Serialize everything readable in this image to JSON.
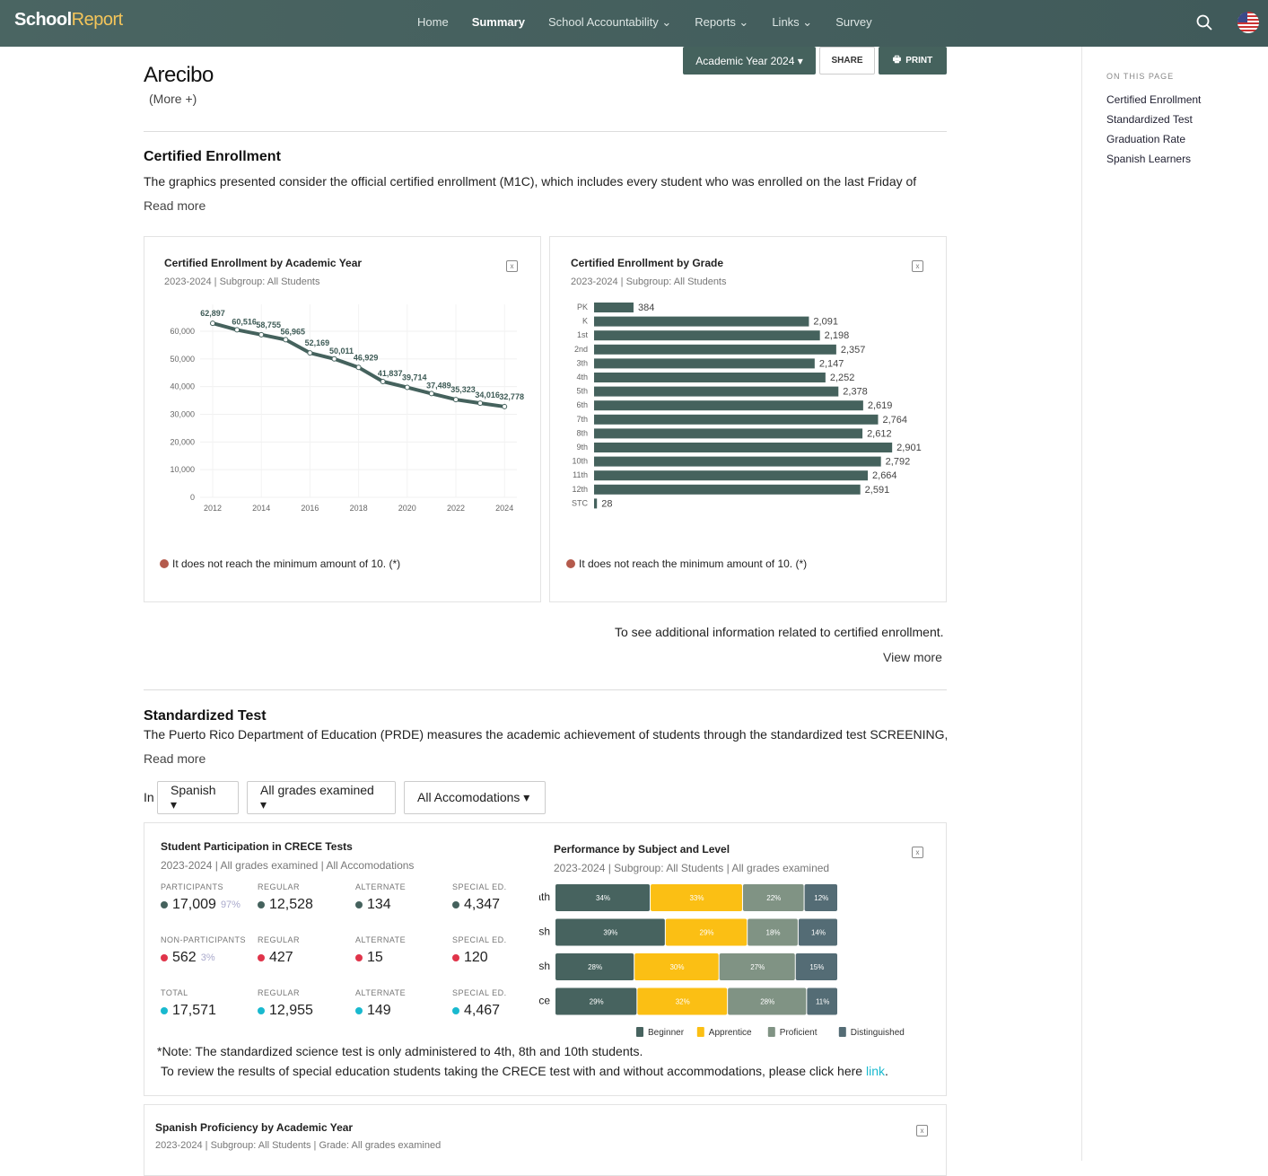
{
  "header": {
    "logo_a": "School",
    "logo_b": "Report",
    "nav": [
      "Home",
      "Summary",
      "School Accountability ⌄",
      "Reports ⌄",
      "Links ⌄",
      "Survey"
    ]
  },
  "toc": {
    "heading": "ON THIS PAGE",
    "items": [
      "Certified Enrollment",
      "Standardized Test",
      "Graduation Rate",
      "Spanish Learners"
    ]
  },
  "school": {
    "name": "Arecibo",
    "more": "(More +)"
  },
  "actions": {
    "year": "Academic Year 2024 ▾",
    "share": "SHARE",
    "print": "PRINT"
  },
  "enrollment": {
    "title": "Certified Enrollment",
    "text": "The graphics presented consider the official certified enrollment (M1C), which includes every student who was enrolled on the last Friday of",
    "read_more": "Read more",
    "additional": "To see additional information related to certified enrollment.",
    "view_more": "View more"
  },
  "note_min": "It does not reach the minimum amount of 10. (*)",
  "chart_data": [
    {
      "type": "line",
      "title": "Certified Enrollment by Academic Year",
      "subtitle": "2023-2024 | Subgroup: All Students",
      "x": [
        2012,
        2013,
        2014,
        2015,
        2016,
        2017,
        2018,
        2019,
        2020,
        2021,
        2022,
        2023,
        2024
      ],
      "values": [
        62897,
        60516,
        58755,
        56965,
        52169,
        50011,
        46929,
        41837,
        39714,
        37489,
        35323,
        34016,
        32778
      ],
      "labels": [
        "62,897",
        "60,516",
        "58,755",
        "56,965",
        "52,169",
        "50,011",
        "46,929",
        "41,837",
        "39,714",
        "37,489",
        "35,323",
        "34,016",
        "32,778"
      ],
      "yticks": [
        "0",
        "10,000",
        "20,000",
        "30,000",
        "40,000",
        "50,000",
        "60,000"
      ],
      "xticks": [
        "2012",
        "2014",
        "2016",
        "2018",
        "2020",
        "2022",
        "2024"
      ],
      "ylim": [
        0,
        60000
      ],
      "color": "#45625d"
    },
    {
      "type": "bar",
      "title": "Certified Enrollment by Grade",
      "subtitle": "2023-2024 | Subgroup: All Students",
      "categories": [
        "PK",
        "K",
        "1st",
        "2nd",
        "3th",
        "4th",
        "5th",
        "6th",
        "7th",
        "8th",
        "9th",
        "10th",
        "11th",
        "12th",
        "STC"
      ],
      "values": [
        384,
        2091,
        2198,
        2357,
        2147,
        2252,
        2378,
        2619,
        2764,
        2612,
        2901,
        2792,
        2664,
        2591,
        28
      ],
      "labels": [
        "384",
        "2,091",
        "2,198",
        "2,357",
        "2,147",
        "2,252",
        "2,378",
        "2,619",
        "2,764",
        "2,612",
        "2,901",
        "2,792",
        "2,664",
        "2,591",
        "28"
      ],
      "color": "#45625d"
    },
    {
      "type": "bar",
      "stacked": true,
      "title": "Performance by Subject and Level",
      "subtitle": "2023-2024 | Subgroup: All Students | All grades examined",
      "categories": [
        "Math",
        "English",
        "Spanish",
        "Science"
      ],
      "series": [
        {
          "name": "Beginner",
          "color": "#47635f",
          "values": [
            34,
            39,
            28,
            29
          ]
        },
        {
          "name": "Apprentice",
          "color": "#fbbf14",
          "values": [
            33,
            29,
            30,
            32
          ]
        },
        {
          "name": "Proficient",
          "color": "#809384",
          "values": [
            22,
            18,
            27,
            28
          ]
        },
        {
          "name": "Distinguished",
          "color": "#546c75",
          "values": [
            12,
            14,
            15,
            11
          ]
        }
      ]
    }
  ],
  "standardized": {
    "title": "Standardized Test",
    "text": "The Puerto Rico Department of Education (PRDE) measures the academic achievement of students through the standardized test SCREENING,",
    "read_more": "Read more",
    "in": "In",
    "filters": [
      "Spanish ▾",
      "All grades examined ▾",
      "All Accomodations ▾"
    ]
  },
  "participation": {
    "title": "Student Participation in CRECE Tests",
    "subtitle": "2023-2024 | All grades examined | All Accomodations",
    "rows": [
      {
        "color": "#45625d",
        "cells": [
          {
            "label": "PARTICIPANTS",
            "value": "17,009",
            "pct": "97%"
          },
          {
            "label": "REGULAR",
            "value": "12,528"
          },
          {
            "label": "ALTERNATE",
            "value": "134"
          },
          {
            "label": "SPECIAL ED.",
            "value": "4,347"
          }
        ]
      },
      {
        "color": "#e0344a",
        "cells": [
          {
            "label": "NON-PARTICIPANTS",
            "value": "562",
            "pct": "3%"
          },
          {
            "label": "REGULAR",
            "value": "427"
          },
          {
            "label": "ALTERNATE",
            "value": "15"
          },
          {
            "label": "SPECIAL ED.",
            "value": "120"
          }
        ]
      },
      {
        "color": "#19b9cf",
        "cells": [
          {
            "label": "TOTAL",
            "value": "17,571"
          },
          {
            "label": "REGULAR",
            "value": "12,955"
          },
          {
            "label": "ALTERNATE",
            "value": "149"
          },
          {
            "label": "SPECIAL ED.",
            "value": "4,467"
          }
        ]
      }
    ],
    "note1": "*Note: The standardized science test is only administered to 4th, 8th and 10th students.",
    "note2": "To review the results of special education students taking the CRECE test with and without accommodations, please click here ",
    "note2_link": "link",
    "note2_end": "."
  },
  "spanish_prof": {
    "title": "Spanish Proficiency by Academic Year",
    "subtitle": "2023-2024 | Subgroup: All Students | Grade: All grades examined"
  }
}
